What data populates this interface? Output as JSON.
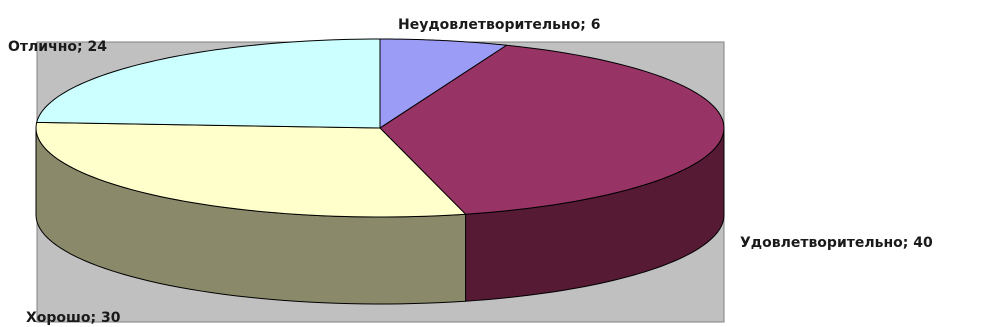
{
  "chart_data": {
    "type": "pie",
    "style": "3d",
    "categories": [
      "Неудовлетворительно",
      "Удовлетворительно",
      "Хорошо",
      "Отлично"
    ],
    "values": [
      6,
      40,
      30,
      24
    ],
    "labels": [
      "Неудовлетворительно; 6",
      "Удовлетворительно; 40",
      "Хорошо; 30",
      "Отлично; 24"
    ],
    "colors": {
      "top": [
        "#9a9cf6",
        "#983366",
        "#ffffcc",
        "#ccffff"
      ],
      "side": [
        "#5f60a8",
        "#561a35",
        "#8a8a6a",
        "#6f9a9a"
      ]
    },
    "plot_background": "#c0c0c0",
    "legend": "none",
    "grid": false
  }
}
